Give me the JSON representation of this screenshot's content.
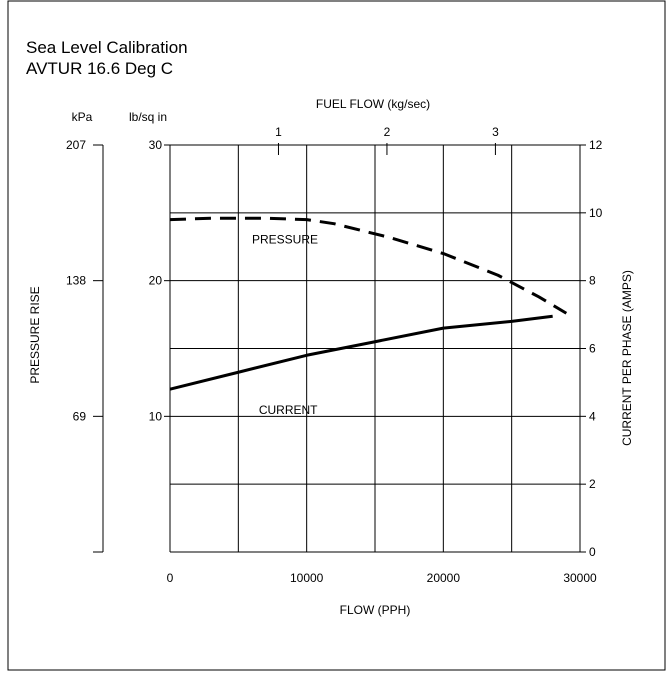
{
  "title_lines": [
    "Sea Level Calibration",
    "AVTUR 16.6 Deg C"
  ],
  "chart_data": {
    "type": "line",
    "xlabel": "FLOW (PPH)",
    "xlim": [
      0,
      30000
    ],
    "x_ticks": [
      "0",
      "10000",
      "20000",
      "30000"
    ],
    "top_axis": {
      "label": "FUEL FLOW (kg/sec)",
      "ticks": [
        {
          "value": 1,
          "label": "1"
        },
        {
          "value": 2,
          "label": "2"
        },
        {
          "value": 3,
          "label": "3"
        }
      ],
      "pph_per_kgsec": 7937
    },
    "left_axis": {
      "label": "PRESSURE RISE",
      "unit_psi": "lb/sq in",
      "unit_kpa": "kPa",
      "ylim": [
        0,
        30
      ],
      "psi_ticks": [
        "10",
        "20",
        "30"
      ],
      "kpa_ticks": [
        {
          "psi": 10,
          "label": "69"
        },
        {
          "psi": 20,
          "label": "138"
        },
        {
          "psi": 30,
          "label": "207"
        }
      ]
    },
    "right_axis": {
      "label": "CURRENT PER PHASE (AMPS)",
      "ylim": [
        0,
        12
      ],
      "ticks": [
        "0",
        "2",
        "4",
        "6",
        "8",
        "10",
        "12"
      ]
    },
    "grid": true,
    "series": [
      {
        "name": "PRESSURE",
        "axis": "left",
        "style": "dashed",
        "x": [
          0,
          3000,
          7000,
          10000,
          12000,
          16000,
          20000,
          24000,
          27000,
          29000
        ],
        "y": [
          24.5,
          24.6,
          24.6,
          24.5,
          24.2,
          23.2,
          22.0,
          20.4,
          18.8,
          17.6
        ]
      },
      {
        "name": "CURRENT",
        "axis": "right",
        "style": "solid",
        "x": [
          0,
          5000,
          10000,
          15000,
          20000,
          25000,
          28000
        ],
        "y": [
          4.8,
          5.3,
          5.8,
          6.2,
          6.6,
          6.8,
          6.95
        ]
      }
    ]
  }
}
